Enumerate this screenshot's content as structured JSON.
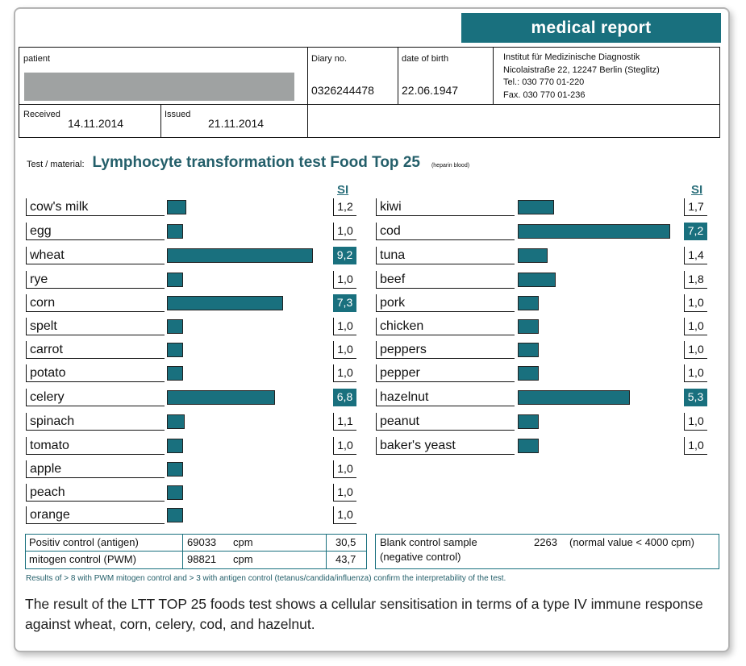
{
  "header": {
    "title": "medical report",
    "patient_label": "patient",
    "diary_label": "Diary no.",
    "diary_no": "0326244478",
    "dob_label": "date of birth",
    "dob": "22.06.1947",
    "institute": [
      "Institut für Medizinische Diagnostik",
      "Nicolaistraße 22, 12247 Berlin (Steglitz)",
      "Tel.: 030 770 01-220",
      "Fax. 030 770 01-236"
    ],
    "received_label": "Received",
    "received": "14.11.2014",
    "issued_label": "Issued",
    "issued": "21.11.2014"
  },
  "test": {
    "label": "Test / material:",
    "title": "Lymphocyte transformation test Food Top 25",
    "material": "(heparin blood)",
    "si_header": "SI"
  },
  "highlight_color": "#19707e",
  "results_left": [
    {
      "food": "cow's milk",
      "si": "1,2",
      "value": 1.2
    },
    {
      "food": "egg",
      "si": "1,0",
      "value": 1.0
    },
    {
      "food": "wheat",
      "si": "9,2",
      "value": 9.2,
      "elevated": true
    },
    {
      "food": "rye",
      "si": "1,0",
      "value": 1.0
    },
    {
      "food": "corn",
      "si": "7,3",
      "value": 7.3,
      "elevated": true
    },
    {
      "food": "spelt",
      "si": "1,0",
      "value": 1.0
    },
    {
      "food": "carrot",
      "si": "1,0",
      "value": 1.0
    },
    {
      "food": "potato",
      "si": "1,0",
      "value": 1.0
    },
    {
      "food": "celery",
      "si": "6,8",
      "value": 6.8,
      "elevated": true
    },
    {
      "food": "spinach",
      "si": "1,1",
      "value": 1.1
    },
    {
      "food": "tomato",
      "si": "1,0",
      "value": 1.0
    },
    {
      "food": "apple",
      "si": "1,0",
      "value": 1.0
    },
    {
      "food": "peach",
      "si": "1,0",
      "value": 1.0
    },
    {
      "food": "orange",
      "si": "1,0",
      "value": 1.0
    }
  ],
  "results_right": [
    {
      "food": "kiwi",
      "si": "1,7",
      "value": 1.7
    },
    {
      "food": "cod",
      "si": "7,2",
      "value": 7.2,
      "elevated": true
    },
    {
      "food": "tuna",
      "si": "1,4",
      "value": 1.4
    },
    {
      "food": "beef",
      "si": "1,8",
      "value": 1.8
    },
    {
      "food": "pork",
      "si": "1,0",
      "value": 1.0
    },
    {
      "food": "chicken",
      "si": "1,0",
      "value": 1.0
    },
    {
      "food": "peppers",
      "si": "1,0",
      "value": 1.0
    },
    {
      "food": "pepper",
      "si": "1,0",
      "value": 1.0
    },
    {
      "food": "hazelnut",
      "si": "5,3",
      "value": 5.3,
      "elevated": true
    },
    {
      "food": "peanut",
      "si": "1,0",
      "value": 1.0
    },
    {
      "food": "baker's yeast",
      "si": "1,0",
      "value": 1.0
    }
  ],
  "controls": {
    "positive_label": "Positiv control (antigen)",
    "positive_cpm": "69033",
    "positive_unit": "cpm",
    "positive_si": "30,5",
    "mitogen_label": "mitogen control (PWM)",
    "mitogen_cpm": "98821",
    "mitogen_unit": "cpm",
    "mitogen_si": "43,7",
    "blank_label": "Blank control sample",
    "blank_value": "2263",
    "blank_normal": "(normal value < 4000 cpm)",
    "negative_label": "(negative control)"
  },
  "note": "Results of > 8 with PWM mitogen control and > 3 with antigen control (tetanus/candida/influenza) confirm the interpretability of the test.",
  "summary": "The result of the LTT TOP 25 foods test shows a cellular sensitisation in terms of a type IV immune response against wheat, corn, celery, cod, and hazelnut."
}
